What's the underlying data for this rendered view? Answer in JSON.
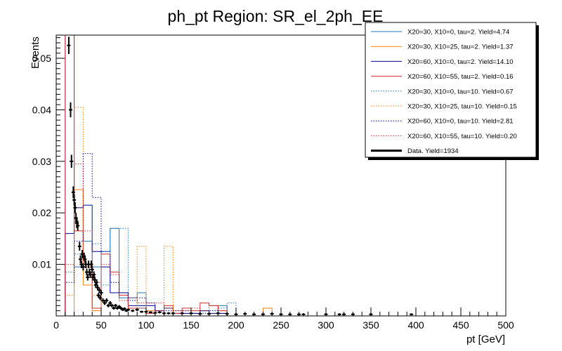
{
  "chart_data": {
    "type": "line",
    "title": "ph_pt Region: SR_el_2ph_EE",
    "xlabel": "pt [GeV]",
    "ylabel": "Events",
    "xlim": [
      0,
      500
    ],
    "ylim": [
      0,
      0.0545
    ],
    "x_ticks": [
      0,
      50,
      100,
      150,
      200,
      250,
      300,
      350,
      400,
      450,
      500
    ],
    "x_tick_labels": [
      "0",
      "50",
      "100",
      "150",
      "200",
      "250",
      "300",
      "350",
      "400",
      "450",
      "500"
    ],
    "y_ticks": [
      0.01,
      0.02,
      0.03,
      0.04,
      0.05
    ],
    "y_tick_labels": [
      "0.01",
      "0.02",
      "0.03",
      "0.04",
      "0.05"
    ],
    "legend_position": "top-right",
    "series": [
      {
        "name": "X20=30, X10=0, tau=2. Yield=4.74",
        "style": "solid",
        "color": "#1f77b4",
        "edges": [
          10,
          20,
          30,
          40,
          50,
          60,
          70,
          80,
          90,
          100,
          110,
          120,
          130,
          140,
          150,
          160,
          170,
          180,
          190,
          200
        ],
        "values": [
          0.0545,
          0.0095,
          0.0145,
          0.0095,
          0.0125,
          0.017,
          0.0035,
          0.0035,
          0.0045,
          0,
          0,
          0.0015,
          0,
          0,
          0,
          0.001,
          0,
          0.002,
          0
        ]
      },
      {
        "name": "X20=30, X10=25, tau=2. Yield=1.37",
        "style": "solid",
        "color": "#ff7f0e",
        "edges": [
          10,
          20,
          30,
          40,
          50,
          60,
          70,
          80,
          90,
          100,
          110,
          120,
          130,
          140,
          150,
          160,
          170,
          180,
          190,
          200,
          230,
          240
        ],
        "values": [
          0,
          0.0245,
          0.006,
          0.001,
          0,
          0,
          0,
          0,
          0,
          0.001,
          0,
          0,
          0,
          0,
          0,
          0,
          0,
          0,
          0,
          0,
          0.0015
        ]
      },
      {
        "name": "X20=60, X10=0, tau=2. Yield=14.10",
        "style": "solid",
        "color": "#00008b",
        "edges": [
          10,
          20,
          30,
          40,
          50,
          60,
          70,
          80,
          90,
          100,
          110,
          120,
          130,
          140,
          150,
          160,
          170,
          180,
          190,
          200
        ],
        "values": [
          0.016,
          0.021,
          0.0215,
          0.0125,
          0.0095,
          0.0045,
          0.0045,
          0.002,
          0.002,
          0.002,
          0.001,
          0.0015,
          0.0005,
          0.0005,
          0.0005,
          0.001,
          0.0005,
          0.0005,
          0
        ]
      },
      {
        "name": "X20=60, X10=55, tau=2. Yield=0.16",
        "style": "solid",
        "color": "#d62728",
        "edges": [
          10,
          20,
          30,
          40,
          50,
          60,
          70,
          80,
          90,
          100,
          110,
          120,
          130,
          140,
          150,
          160,
          170,
          180,
          190,
          200
        ],
        "values": [
          0.0545,
          0.0165,
          0.0095,
          0.0015,
          0.012,
          0.0085,
          0.004,
          0.0015,
          0.0015,
          0.0005,
          0.001,
          0.002,
          0.0005,
          0.0015,
          0.001,
          0.0025,
          0.002,
          0.001,
          0
        ]
      },
      {
        "name": "X20=30, X10=0, tau=10. Yield=0.67",
        "style": "dotted",
        "color": "#1f77b4",
        "edges": [
          10,
          20,
          30,
          40,
          50,
          60,
          70,
          80,
          90,
          100,
          110,
          120,
          130,
          140,
          150,
          160,
          170,
          180,
          190,
          200
        ],
        "values": [
          0.0085,
          0.012,
          0.0215,
          0.014,
          0.006,
          0.017,
          0.017,
          0.0035,
          0.0015,
          0,
          0,
          0,
          0,
          0,
          0,
          0.001,
          0,
          0.0015,
          0.0025
        ]
      },
      {
        "name": "X20=30, X10=25, tau=10. Yield=0.15",
        "style": "dotted",
        "color": "#ff7f0e",
        "edges": [
          10,
          20,
          30,
          40,
          50,
          60,
          70,
          80,
          90,
          100,
          110,
          120,
          130,
          140,
          150,
          160,
          170,
          180,
          190,
          200
        ],
        "values": [
          0.004,
          0.0405,
          0.01,
          0.004,
          0,
          0,
          0,
          0,
          0.0135,
          0,
          0,
          0.0135,
          0,
          0,
          0,
          0,
          0,
          0,
          0
        ]
      },
      {
        "name": "X20=60, X10=0, tau=10. Yield=2.81",
        "style": "dotted",
        "color": "#00008b",
        "edges": [
          10,
          20,
          30,
          40,
          50,
          60,
          70,
          80,
          90,
          100,
          110,
          120,
          130,
          140,
          150,
          160,
          170,
          180,
          190,
          200
        ],
        "values": [
          0.0065,
          0.0145,
          0.0315,
          0.023,
          0.0125,
          0.0065,
          0.0045,
          0.003,
          0.0035,
          0.0025,
          0.001,
          0.001,
          0.001,
          0.001,
          0.0005,
          0.0005,
          0.001,
          0.0005,
          0
        ]
      },
      {
        "name": "X20=60, X10=55, tau=10. Yield=0.20",
        "style": "dotted",
        "color": "#d62728",
        "edges": [
          10,
          20,
          30,
          40,
          50,
          60,
          70,
          80,
          90,
          100,
          110,
          120,
          130,
          140,
          150,
          160,
          170,
          180,
          190,
          200
        ],
        "values": [
          0.01,
          0.0295,
          0.0165,
          0.0065,
          0.01,
          0.008,
          0.003,
          0.0035,
          0.0025,
          0.0025,
          0.0025,
          0.0015,
          0.001,
          0.001,
          0.0015,
          0.001,
          0.002,
          0.001,
          0
        ]
      },
      {
        "name": "Data. Yield=1934",
        "style": "points",
        "color": "#000000",
        "x": [
          14,
          16,
          17,
          19,
          20,
          21,
          22,
          23,
          24,
          26,
          27,
          28,
          29,
          30,
          31,
          32,
          33,
          34,
          35,
          36,
          37,
          38,
          39,
          40,
          41,
          42,
          43,
          44,
          45,
          46,
          47,
          48,
          49,
          50,
          52,
          54,
          56,
          58,
          60,
          62,
          64,
          66,
          68,
          70,
          72,
          74,
          76,
          78,
          80,
          85,
          90,
          95,
          100,
          105,
          110,
          115,
          120,
          125,
          130,
          140,
          150,
          160,
          170,
          180,
          190,
          200,
          210,
          220,
          230,
          240,
          250,
          260,
          270,
          275,
          300,
          315,
          320,
          330,
          350,
          395
        ],
        "y": [
          0.0525,
          0.04,
          0.03,
          0.024,
          0.0225,
          0.021,
          0.019,
          0.018,
          0.0175,
          0.0135,
          0.011,
          0.01,
          0.012,
          0.0095,
          0.0115,
          0.011,
          0.01,
          0.0085,
          0.0075,
          0.01,
          0.0085,
          0.008,
          0.01,
          0.009,
          0.0075,
          0.008,
          0.007,
          0.006,
          0.0065,
          0.0055,
          0.004,
          0.005,
          0.0035,
          0.0045,
          0.003,
          0.0025,
          0.003,
          0.002,
          0.0025,
          0.002,
          0.0015,
          0.002,
          0.0015,
          0.0018,
          0.0015,
          0.0012,
          0.0014,
          0.001,
          0.0012,
          0.001,
          0.0012,
          0.0008,
          0.0008,
          0.0007,
          0.0006,
          0.0007,
          0.0005,
          0.0005,
          0.0005,
          0.0005,
          0.0005,
          0.0004,
          0.0004,
          0.0005,
          0.0004,
          0.0003,
          0.0004,
          0.0003,
          0.0003,
          0.0004,
          0.0003,
          0.0003,
          0.0003,
          0.0003,
          0.0003,
          0.0003,
          0.0003,
          0.0003,
          0.0003,
          0.0003
        ]
      }
    ]
  }
}
